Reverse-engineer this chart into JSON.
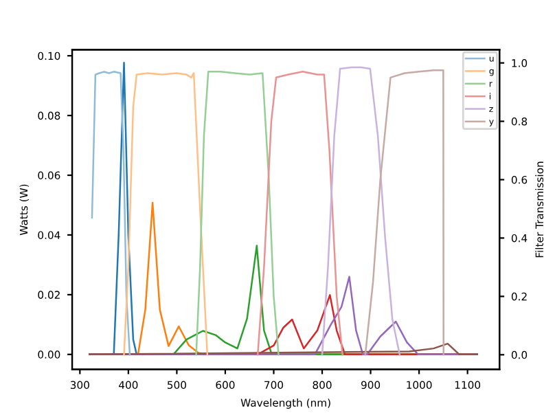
{
  "chart_data": {
    "type": "line",
    "xlabel": "Wavelength (nm)",
    "ylabel": "Watts (W)",
    "y2label": "Filter Transmission",
    "xlim": [
      284,
      1166
    ],
    "xticks": [
      300,
      400,
      500,
      600,
      700,
      800,
      900,
      1000,
      1100
    ],
    "ylim": [
      -0.005,
      0.102
    ],
    "yticks": [
      {
        "value": 0,
        "label": "0.00"
      },
      {
        "value": 0.02,
        "label": "0.02"
      },
      {
        "value": 0.04,
        "label": "0.04"
      },
      {
        "value": 0.06,
        "label": "0.06"
      },
      {
        "value": 0.08,
        "label": "0.08"
      },
      {
        "value": 0.1,
        "label": "0.10"
      }
    ],
    "y2lim": [
      -0.05,
      1.045
    ],
    "y2ticks": [
      {
        "value": 0,
        "label": "0.0"
      },
      {
        "value": 0.2,
        "label": "0.2"
      },
      {
        "value": 0.4,
        "label": "0.4"
      },
      {
        "value": 0.6,
        "label": "0.6"
      },
      {
        "value": 0.8,
        "label": "0.8"
      },
      {
        "value": 1.0,
        "label": "1.0"
      }
    ],
    "legend": "top right",
    "grid": false,
    "line_style": "solid",
    "marker": "none",
    "series": [
      {
        "name": "u",
        "color": "#8fbbd9",
        "axis": "y2",
        "x": [
          325,
          332,
          340,
          350,
          360,
          370,
          384,
          390,
          396,
          403
        ],
        "values": [
          0.47,
          0.96,
          0.965,
          0.97,
          0.965,
          0.97,
          0.965,
          0.7,
          0.2,
          0
        ]
      },
      {
        "name": "g",
        "color": "#ffbf86",
        "axis": "y2",
        "x": [
          391,
          400,
          410,
          417,
          440,
          470,
          500,
          520,
          530,
          535,
          548,
          563
        ],
        "values": [
          0,
          0.3,
          0.85,
          0.96,
          0.965,
          0.96,
          0.965,
          0.96,
          0.95,
          0.965,
          0.5,
          0
        ]
      },
      {
        "name": "r",
        "color": "#95cf95",
        "axis": "y2",
        "x": [
          540,
          548,
          556,
          565,
          590,
          620,
          650,
          677,
          690,
          700,
          710
        ],
        "values": [
          0,
          0.3,
          0.75,
          0.97,
          0.97,
          0.965,
          0.96,
          0.965,
          0.6,
          0.2,
          0
        ]
      },
      {
        "name": "i",
        "color": "#ea9293",
        "axis": "y2",
        "x": [
          667,
          680,
          695,
          705,
          730,
          760,
          790,
          804,
          815,
          830,
          842
        ],
        "values": [
          0,
          0.3,
          0.8,
          0.95,
          0.96,
          0.97,
          0.96,
          0.96,
          0.7,
          0.2,
          0
        ]
      },
      {
        "name": "z",
        "color": "#c9b3de",
        "axis": "y2",
        "x": [
          800,
          812,
          825,
          837,
          860,
          880,
          899,
          915,
          930,
          945,
          960
        ],
        "values": [
          0,
          0.3,
          0.75,
          0.98,
          0.985,
          0.985,
          0.98,
          0.75,
          0.4,
          0.12,
          0
        ]
      },
      {
        "name": "y",
        "color": "#c5aaa5",
        "axis": "y2",
        "x": [
          889,
          905,
          920,
          941,
          970,
          1000,
          1030,
          1050,
          1050.5
        ],
        "values": [
          0,
          0.25,
          0.6,
          0.95,
          0.965,
          0.97,
          0.975,
          0.975,
          0
        ]
      },
      {
        "color": "#1f77b4",
        "x": [
          320,
          370,
          380,
          391,
          400,
          410,
          417,
          1120
        ],
        "values": [
          0,
          0,
          0.04,
          0.0977,
          0.04,
          0.005,
          0,
          0
        ]
      },
      {
        "color": "#ff7f0e",
        "x": [
          320,
          420,
          435,
          450,
          465,
          483,
          504,
          525,
          545,
          563,
          1120
        ],
        "values": [
          0,
          0,
          0.015,
          0.0508,
          0.015,
          0.0028,
          0.0094,
          0.003,
          0.0005,
          0,
          0
        ]
      },
      {
        "color": "#2ca02c",
        "x": [
          320,
          493,
          520,
          554,
          580,
          600,
          625,
          645,
          665,
          680,
          696,
          1120
        ],
        "values": [
          0,
          0,
          0.005,
          0.0079,
          0.0065,
          0.004,
          0.002,
          0.012,
          0.0364,
          0.008,
          0,
          0
        ]
      },
      {
        "color": "#d62728",
        "x": [
          320,
          667,
          700,
          720,
          738,
          762,
          790,
          816,
          830,
          847,
          1120
        ],
        "values": [
          0,
          0,
          0.003,
          0.009,
          0.0117,
          0.002,
          0.008,
          0.0199,
          0.008,
          0,
          0
        ]
      },
      {
        "color": "#9467bd",
        "x": [
          320,
          785,
          818,
          840,
          856,
          870,
          884,
          893,
          920,
          952,
          975,
          998,
          1120
        ],
        "values": [
          0,
          0,
          0.01,
          0.016,
          0.026,
          0.008,
          0,
          0,
          0.006,
          0.011,
          0.004,
          0,
          0
        ]
      },
      {
        "color": "#8c564b",
        "x": [
          320,
          980,
          1030,
          1059,
          1083,
          1120
        ],
        "values": [
          0,
          0.001,
          0.002,
          0.0036,
          0,
          0
        ]
      }
    ]
  }
}
